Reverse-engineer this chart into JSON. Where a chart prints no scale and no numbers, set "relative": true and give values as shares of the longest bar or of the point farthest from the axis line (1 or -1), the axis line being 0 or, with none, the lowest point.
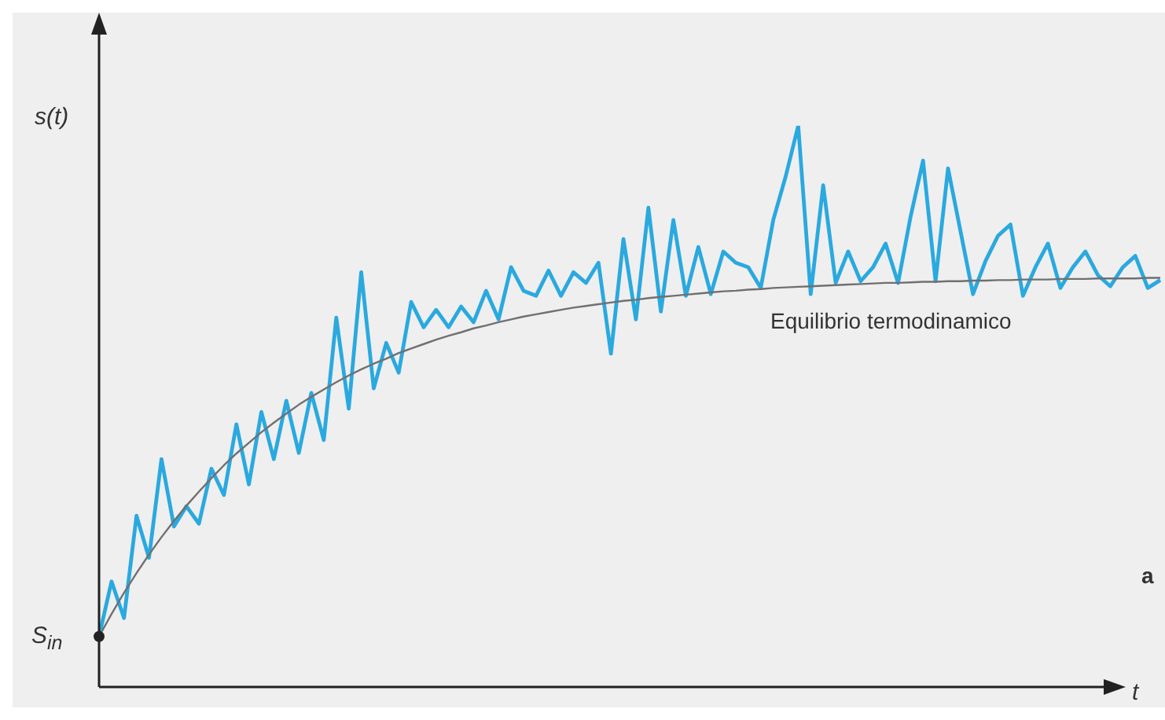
{
  "chart_data": {
    "type": "line",
    "relative": true,
    "xlabel": "t",
    "ylabel": "s(t)",
    "grid": false,
    "legend": false,
    "marker": "none",
    "line_style": "solid",
    "categories": [
      null,
      null,
      null,
      null,
      null,
      null,
      null,
      null,
      null,
      null,
      null,
      null,
      null,
      null,
      null,
      null,
      null,
      null,
      null,
      null,
      null,
      null,
      null,
      null,
      null,
      null,
      null,
      null,
      null,
      null,
      null,
      null,
      null,
      null,
      null,
      null,
      null,
      null,
      null,
      null,
      null,
      null,
      null,
      null,
      null,
      null,
      null,
      null,
      null,
      null,
      null,
      null,
      null,
      null,
      null,
      null,
      null,
      null,
      null,
      null,
      null,
      null,
      null,
      null,
      null,
      null,
      null,
      null,
      null,
      null,
      null,
      null,
      null,
      null,
      null,
      null,
      null,
      null,
      null,
      null,
      null,
      null,
      null,
      null,
      null,
      null
    ],
    "series": [
      {
        "color": "#2aa9df",
        "values": [
          0.09,
          0.188,
          0.123,
          0.305,
          0.23,
          0.406,
          0.286,
          0.322,
          0.291,
          0.389,
          0.342,
          0.468,
          0.361,
          0.49,
          0.406,
          0.51,
          0.417,
          0.524,
          0.44,
          0.658,
          0.496,
          0.739,
          0.532,
          0.613,
          0.56,
          0.686,
          0.641,
          0.672,
          0.641,
          0.678,
          0.65,
          0.706,
          0.655,
          0.748,
          0.706,
          0.697,
          0.742,
          0.697,
          0.739,
          0.72,
          0.756,
          0.594,
          0.798,
          0.655,
          0.854,
          0.669,
          0.832,
          0.697,
          0.784,
          0.7,
          0.776,
          0.756,
          0.748,
          0.711,
          0.832,
          0.91,
          1.0,
          0.7,
          0.894,
          0.72,
          0.776,
          0.723,
          0.748,
          0.79,
          0.72,
          0.838,
          0.938,
          0.723,
          0.924,
          0.812,
          0.7,
          0.759,
          0.804,
          0.824,
          0.697,
          0.748,
          0.79,
          0.711,
          0.748,
          0.776,
          0.734,
          0.714,
          0.748,
          0.768,
          0.711,
          0.725
        ]
      },
      {
        "color": "#707070",
        "values": [
          0.09,
          0.13,
          0.168,
          0.203,
          0.236,
          0.267,
          0.296,
          0.323,
          0.348,
          0.372,
          0.395,
          0.416,
          0.435,
          0.454,
          0.471,
          0.487,
          0.503,
          0.517,
          0.53,
          0.543,
          0.555,
          0.566,
          0.576,
          0.585,
          0.595,
          0.603,
          0.611,
          0.619,
          0.626,
          0.632,
          0.639,
          0.644,
          0.65,
          0.655,
          0.66,
          0.664,
          0.668,
          0.672,
          0.676,
          0.679,
          0.682,
          0.685,
          0.688,
          0.69,
          0.693,
          0.695,
          0.697,
          0.699,
          0.701,
          0.703,
          0.705,
          0.706,
          0.708,
          0.709,
          0.711,
          0.712,
          0.713,
          0.714,
          0.715,
          0.716,
          0.717,
          0.718,
          0.719,
          0.72,
          0.72,
          0.721,
          0.722,
          0.722,
          0.723,
          0.723,
          0.724,
          0.724,
          0.725,
          0.725,
          0.726,
          0.726,
          0.726,
          0.727,
          0.727,
          0.727,
          0.728,
          0.728,
          0.728,
          0.728,
          0.729,
          0.729
        ]
      }
    ],
    "annotations": [
      "Equilibrio termodinamico",
      "S$_{in}$",
      "a"
    ]
  }
}
